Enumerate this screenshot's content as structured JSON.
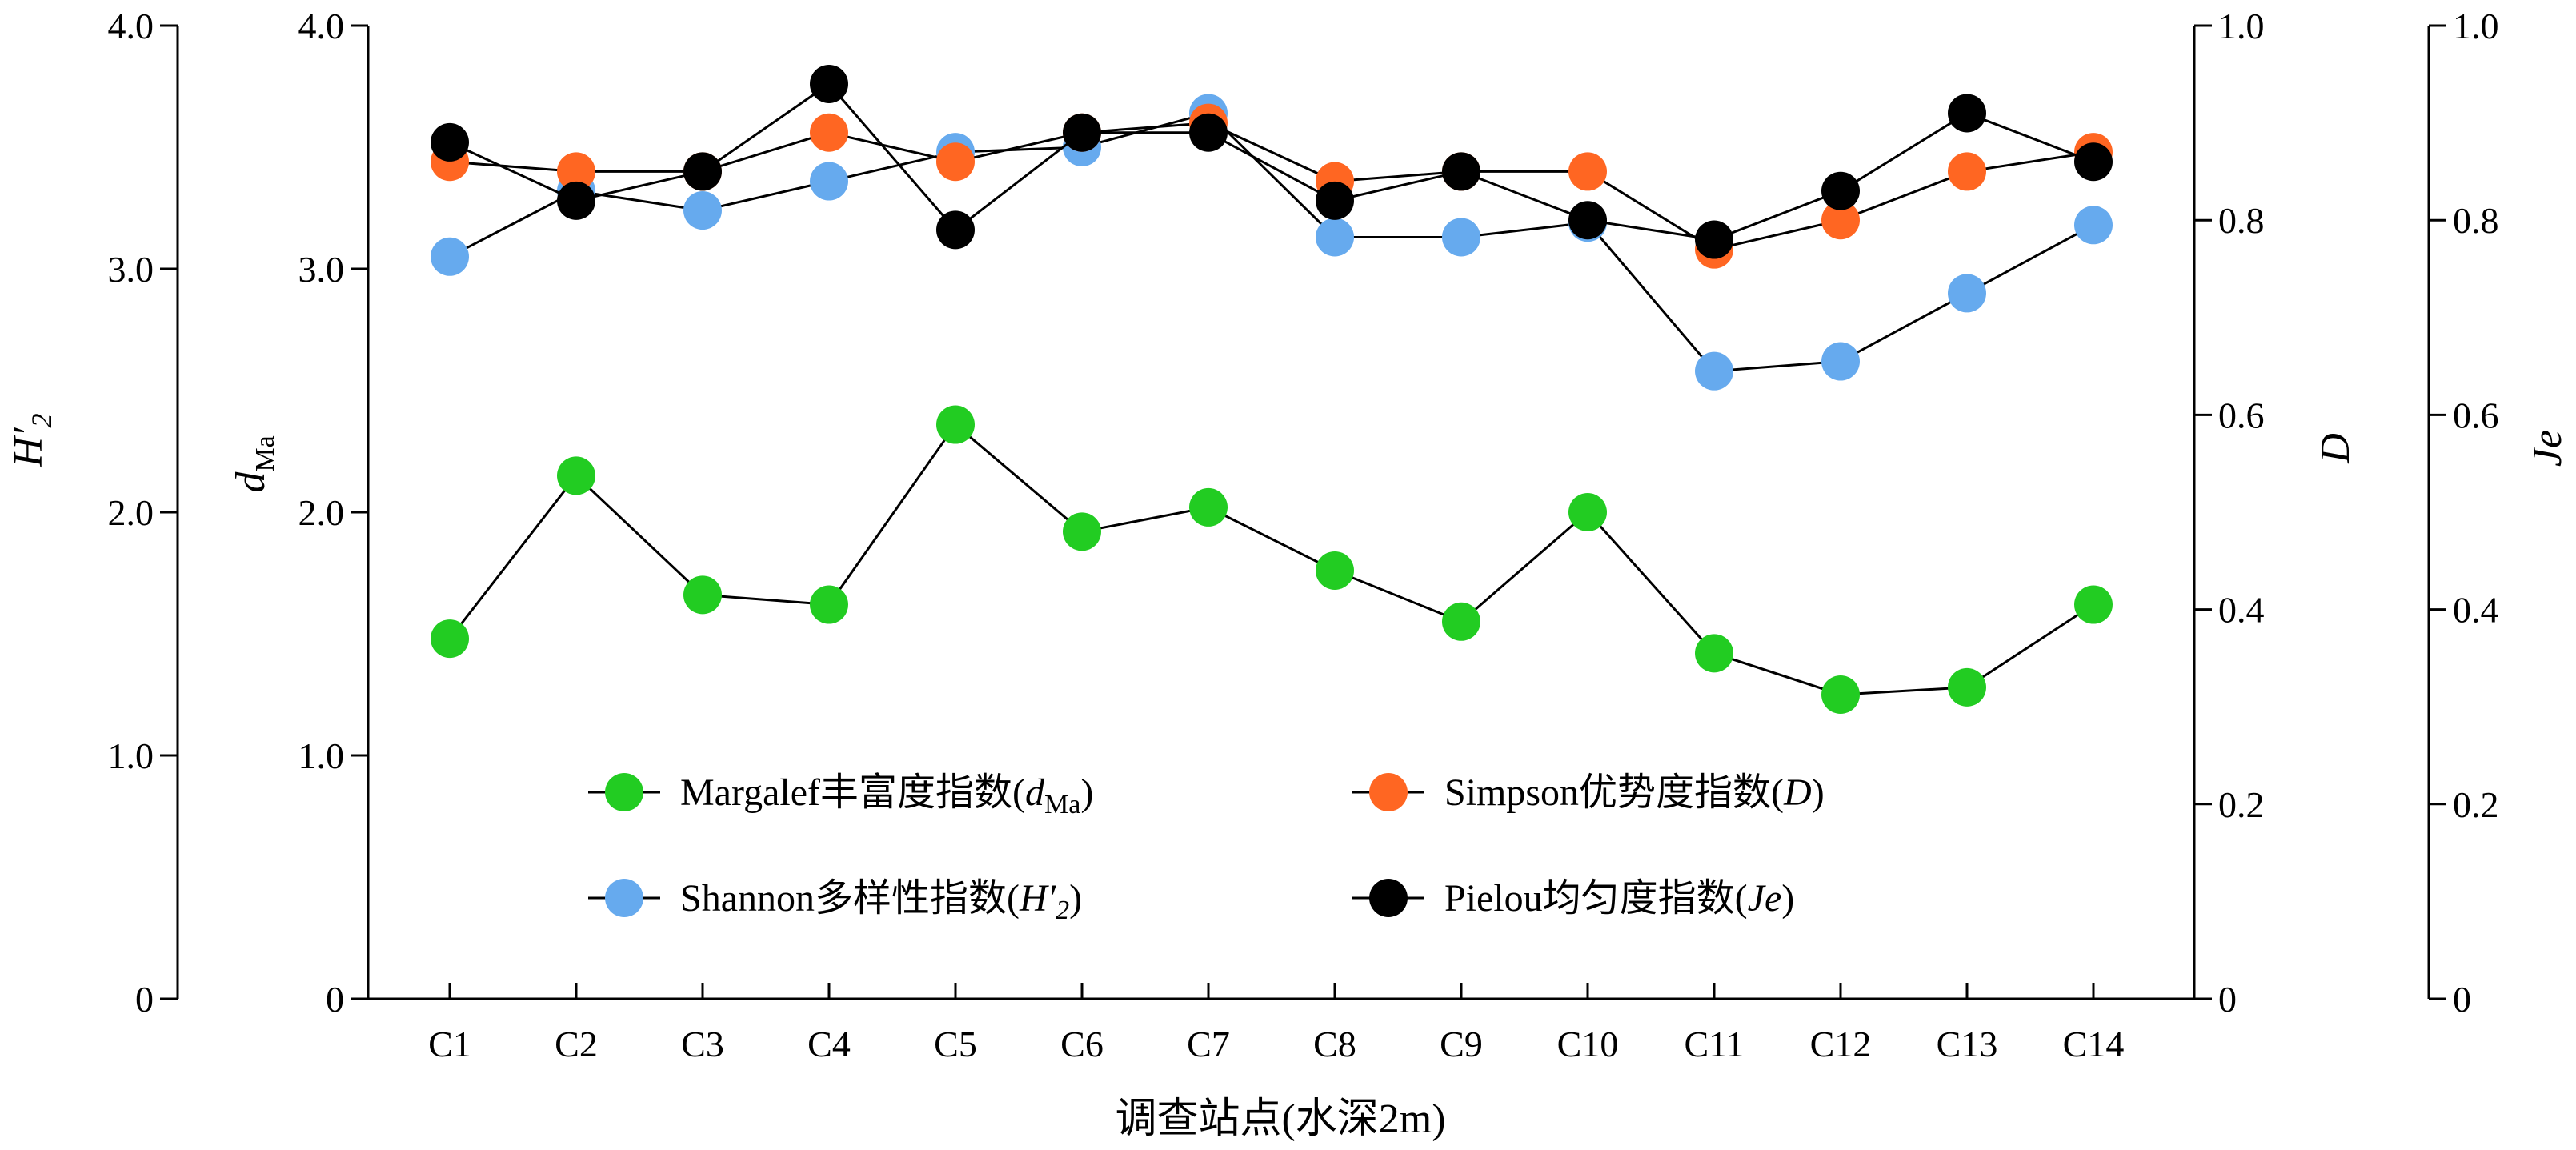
{
  "chart_data": {
    "type": "line",
    "categories": [
      "C1",
      "C2",
      "C3",
      "C4",
      "C5",
      "C6",
      "C7",
      "C8",
      "C9",
      "C10",
      "C11",
      "C12",
      "C13",
      "C14"
    ],
    "xlabel": "调查站点(水深2m)",
    "axes": {
      "H2": {
        "label": "H′",
        "label_sub": "2",
        "ylim": [
          0,
          4.0
        ],
        "ticks": [
          "0",
          "1.0",
          "2.0",
          "3.0",
          "4.0"
        ]
      },
      "dMa": {
        "label": "d",
        "label_sub": "Ma",
        "ylim": [
          0,
          4.0
        ],
        "ticks": [
          "0",
          "1.0",
          "2.0",
          "3.0",
          "4.0"
        ]
      },
      "D": {
        "label": "D",
        "ylim": [
          0,
          1.0
        ],
        "ticks": [
          "0",
          "0.2",
          "0.4",
          "0.6",
          "0.8",
          "1.0"
        ]
      },
      "Je": {
        "label": "Je",
        "ylim": [
          0,
          1.0
        ],
        "ticks": [
          "0",
          "0.2",
          "0.4",
          "0.6",
          "0.8",
          "1.0"
        ]
      }
    },
    "series": [
      {
        "key": "margalef",
        "axis": "dMa",
        "color": "#22cc22",
        "legend_main": "Margalef丰富度指数(",
        "legend_var": "d",
        "legend_sub": "Ma",
        "legend_end": ")",
        "values": [
          1.48,
          2.15,
          1.66,
          1.62,
          2.36,
          1.92,
          2.02,
          1.76,
          1.55,
          2.0,
          1.42,
          1.25,
          1.28,
          1.62
        ]
      },
      {
        "key": "shannon",
        "axis": "H2",
        "color": "#66aaee",
        "legend_main": "Shannon多样性指数(",
        "legend_var": "H′",
        "legend_sub": "2",
        "legend_end": ")",
        "values": [
          3.05,
          3.32,
          3.24,
          3.36,
          3.48,
          3.5,
          3.64,
          3.13,
          3.13,
          3.19,
          2.58,
          2.62,
          2.9,
          3.18
        ]
      },
      {
        "key": "simpson",
        "axis": "D",
        "color": "#ff6622",
        "legend_main": "Simpson优势度指数(",
        "legend_var": "D",
        "legend_sub": "",
        "legend_end": ")",
        "values": [
          0.86,
          0.85,
          0.85,
          0.89,
          0.86,
          0.89,
          0.9,
          0.84,
          0.85,
          0.85,
          0.77,
          0.8,
          0.85,
          0.87
        ]
      },
      {
        "key": "pielou",
        "axis": "Je",
        "color": "#000000",
        "legend_main": "Pielou均匀度指数(",
        "legend_var": "Je",
        "legend_sub": "",
        "legend_end": ")",
        "values": [
          0.88,
          0.82,
          0.85,
          0.94,
          0.79,
          0.89,
          0.89,
          0.82,
          0.85,
          0.8,
          0.78,
          0.83,
          0.91,
          0.86
        ]
      }
    ]
  }
}
